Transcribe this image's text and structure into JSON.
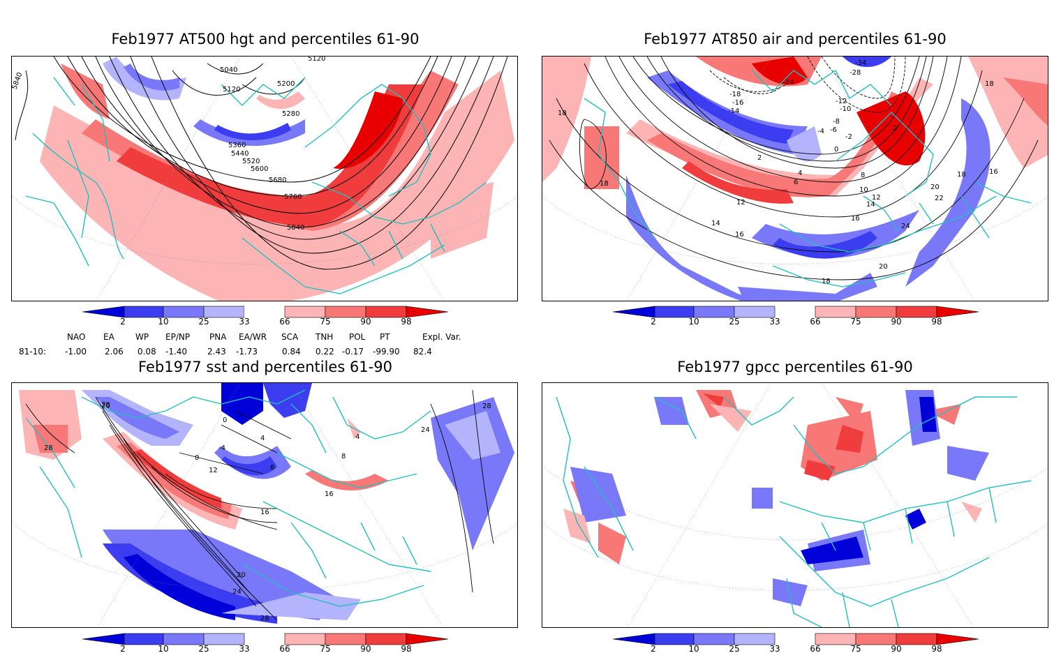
{
  "panels": [
    {
      "title": "Feb1977 AT500 hgt and percentiles 61-90",
      "contour_labels": [
        "5040",
        "5120",
        "5200",
        "5280",
        "5360",
        "5440",
        "5520",
        "5600",
        "5680",
        "5760",
        "5840",
        "5840",
        "5120"
      ]
    },
    {
      "title": "Feb1977 AT850 air and percentiles 61-90",
      "contour_labels": [
        "-34",
        "-28",
        "-24",
        "-18",
        "-16",
        "-14",
        "-12",
        "-10",
        "-8",
        "-6",
        "-4",
        "-2",
        "0",
        "2",
        "2",
        "4",
        "6",
        "8",
        "10",
        "12",
        "12",
        "14",
        "14",
        "16",
        "16",
        "16",
        "18",
        "18",
        "18",
        "18",
        "18",
        "20",
        "20",
        "22",
        "24"
      ]
    },
    {
      "title": "Feb1977 sst and percentiles 61-90",
      "contour_labels": [
        "28",
        "28",
        "28",
        "24",
        "24",
        "20",
        "20",
        "16",
        "16",
        "12",
        "8",
        "8",
        "4",
        "4",
        "0",
        "0",
        "-4",
        "28"
      ]
    },
    {
      "title": "Feb1977 gpcc percentiles 61-90",
      "contour_labels": []
    }
  ],
  "colorbar": {
    "ticks": [
      "2",
      "10",
      "25",
      "33",
      "66",
      "75",
      "90",
      "98"
    ],
    "colors": [
      "#0000d8",
      "#3c3cf0",
      "#7878f8",
      "#b4b4fc",
      "#ffffff",
      "#fcb4b4",
      "#f87878",
      "#f03c3c",
      "#e80000"
    ]
  },
  "indices": {
    "names": [
      "NAO",
      "EA",
      "WP",
      "EP/NP",
      "PNA",
      "EA/WR",
      "SCA",
      "TNH",
      "POL",
      "PT",
      "Expl. Var."
    ],
    "row_label": "81-10:",
    "values": [
      "-1.00",
      "2.06",
      "0.08",
      "-1.40",
      "2.43",
      "-1.73",
      "0.84",
      "0.22",
      "-0.17",
      "-99.90",
      "82.4"
    ]
  },
  "colors": {
    "coast": "#20c0c0",
    "contour": "#000000",
    "grid": "#888888"
  }
}
